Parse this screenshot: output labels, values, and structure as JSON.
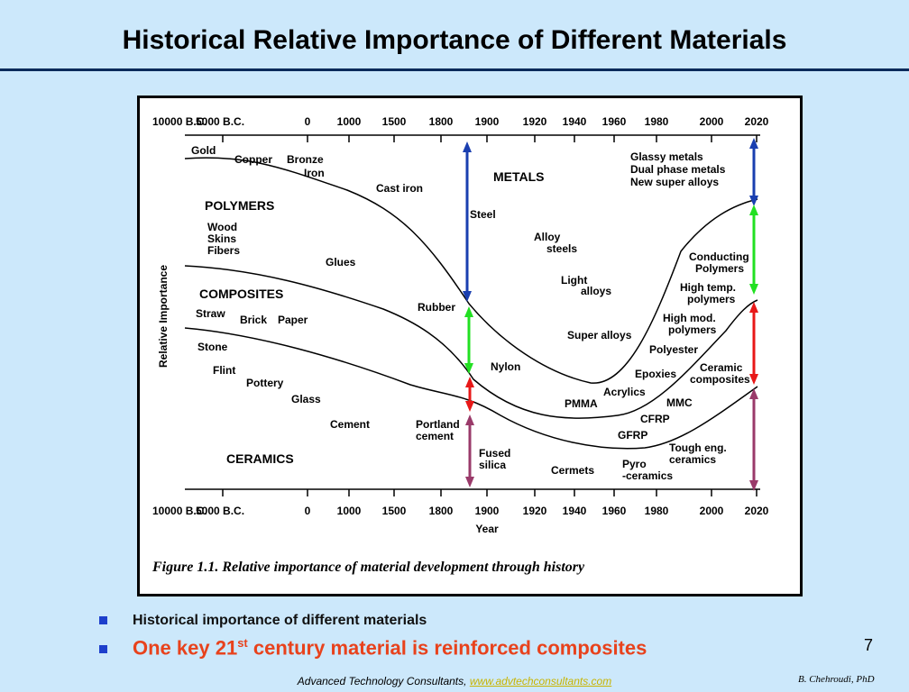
{
  "slide": {
    "title": "Historical Relative Importance of Different Materials",
    "page_number": "7",
    "footer_text": "Advanced Technology Consultants,",
    "footer_link": "www.advtechconsultants.com",
    "author": "B. Chehroudi, PhD"
  },
  "bullets": {
    "item1": "Historical importance of different materials",
    "item2_pre": "One key 21",
    "item2_sup": "st",
    "item2_post": " century material is reinforced composites"
  },
  "figure": {
    "caption": "Figure 1.1. Relative importance of material development through history",
    "y_axis_label": "Relative Importance",
    "x_axis_label": "Year",
    "top_ticks": [
      "10000 B.C.",
      "5000 B.C.",
      "0",
      "1000",
      "1500",
      "1800",
      "1900",
      "1920",
      "1940",
      "1960",
      "1980",
      "2000",
      "2020"
    ],
    "bottom_ticks": [
      "10000 B.C.",
      "5000 B.C.",
      "0",
      "1000",
      "1500",
      "1800",
      "1900",
      "1920",
      "1940",
      "1960",
      "1980",
      "2000",
      "2020"
    ],
    "region_labels": {
      "metals": "METALS",
      "polymers": "POLYMERS",
      "composites": "COMPOSITES",
      "ceramics": "CERAMICS"
    },
    "labels": {
      "gold": "Gold",
      "copper": "Copper",
      "bronze": "Bronze",
      "iron": "Iron",
      "cast_iron": "Cast iron",
      "steel": "Steel",
      "glassy": "Glassy metals",
      "dual": "Dual phase metals",
      "super_new": "New super alloys",
      "wood": "Wood",
      "skins": "Skins",
      "fibers": "Fibers",
      "glues": "Glues",
      "alloy": "Alloy",
      "steels": "steels",
      "light": "Light",
      "alloys": "alloys",
      "conducting1": "Conducting",
      "conducting2": "Polymers",
      "hightemp1": "High temp.",
      "hightemp2": "polymers",
      "rubber": "Rubber",
      "straw": "Straw",
      "brick": "Brick",
      "paper": "Paper",
      "highmod1": "High mod.",
      "highmod2": "polymers",
      "super_alloys": "Super alloys",
      "stone": "Stone",
      "polyester": "Polyester",
      "flint": "Flint",
      "nylon": "Nylon",
      "epoxies": "Epoxies",
      "ceramic1": "Ceramic",
      "ceramic2": "composites",
      "pottery": "Pottery",
      "acrylics": "Acrylics",
      "glass": "Glass",
      "pmma": "PMMA",
      "mmc": "MMC",
      "cement": "Cement",
      "portland1": "Portland",
      "portland2": "cement",
      "cfrp": "CFRP",
      "gfrp": "GFRP",
      "tough1": "Tough eng.",
      "tough2": "ceramics",
      "fused1": "Fused",
      "fused2": "silica",
      "cermets": "Cermets",
      "pyro1": "Pyro",
      "pyro2": "-ceramics"
    },
    "arrow_colors": {
      "metals": "#1a3fb0",
      "polymers": "#22e022",
      "composites": "#e81818",
      "ceramics": "#9a3a6a"
    }
  }
}
